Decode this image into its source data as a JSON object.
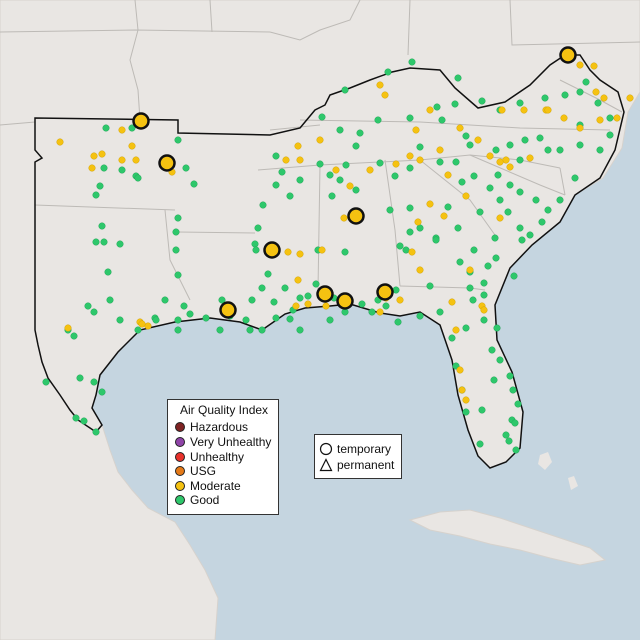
{
  "legend": {
    "title": "Air Quality Index",
    "categories": [
      {
        "label": "Hazardous",
        "color": "#7e2323"
      },
      {
        "label": "Very Unhealthy",
        "color": "#8f44a8"
      },
      {
        "label": "Unhealthy",
        "color": "#e8312b"
      },
      {
        "label": "USG",
        "color": "#e57a18"
      },
      {
        "label": "Moderate",
        "color": "#f5c211"
      },
      {
        "label": "Good",
        "color": "#2ec76b"
      }
    ]
  },
  "site_type_legend": {
    "items": [
      {
        "label": "temporary",
        "shape": "circle"
      },
      {
        "label": "permanent",
        "shape": "triangle"
      }
    ]
  },
  "colors": {
    "water": "#c5d5e0",
    "land": "#e9e6e3",
    "region_border": "#111111",
    "good": "#2ec76b",
    "moderate": "#f5c211"
  },
  "map": {
    "region": "Southeastern United States",
    "categories_present": [
      "Good",
      "Moderate"
    ],
    "temporary_sites_category": "Moderate",
    "temporary_site_count": 9
  }
}
